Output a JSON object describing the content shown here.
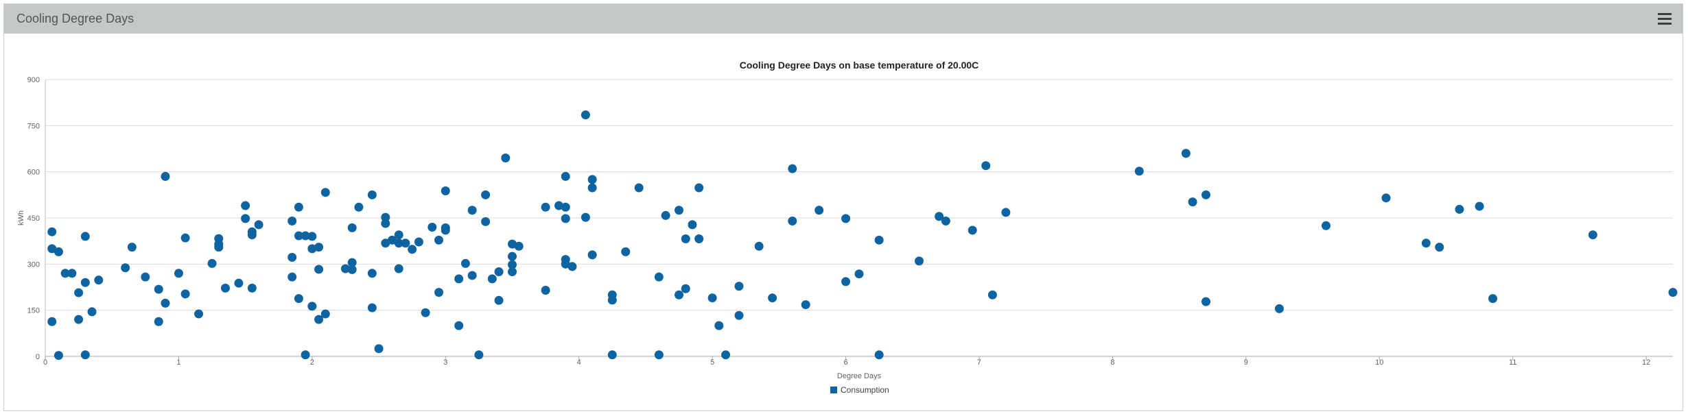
{
  "panel": {
    "title": "Cooling Degree Days",
    "menu_icon": "hamburger-menu-icon"
  },
  "colors": {
    "header_bg": "#c4c8c8",
    "point": "#0e64a0",
    "grid": "#d8d8d8"
  },
  "chart_data": {
    "type": "scatter",
    "title": "Cooling Degree Days on base temperature of 20.00C",
    "xlabel": "Degree Days",
    "ylabel": "kWh",
    "xlim": [
      0,
      12.2
    ],
    "ylim": [
      0,
      900
    ],
    "x_ticks": [
      0,
      1,
      2,
      3,
      4,
      5,
      6,
      7,
      8,
      9,
      10,
      11,
      12
    ],
    "y_ticks": [
      0,
      150,
      300,
      450,
      600,
      750,
      900
    ],
    "grid": true,
    "legend_position": "bottom-center",
    "series": [
      {
        "name": "Consumption",
        "color": "#0e64a0",
        "points": [
          [
            0.05,
            405
          ],
          [
            0.05,
            350
          ],
          [
            0.05,
            113
          ],
          [
            0.1,
            340
          ],
          [
            0.1,
            3
          ],
          [
            0.15,
            270
          ],
          [
            0.2,
            270
          ],
          [
            0.25,
            207
          ],
          [
            0.25,
            120
          ],
          [
            0.3,
            390
          ],
          [
            0.3,
            240
          ],
          [
            0.3,
            5
          ],
          [
            0.35,
            145
          ],
          [
            0.4,
            248
          ],
          [
            0.6,
            288
          ],
          [
            0.65,
            355
          ],
          [
            0.75,
            258
          ],
          [
            0.85,
            218
          ],
          [
            0.85,
            113
          ],
          [
            0.9,
            585
          ],
          [
            0.9,
            173
          ],
          [
            1.0,
            270
          ],
          [
            1.05,
            385
          ],
          [
            1.05,
            203
          ],
          [
            1.15,
            138
          ],
          [
            1.25,
            302
          ],
          [
            1.3,
            383
          ],
          [
            1.3,
            365
          ],
          [
            1.3,
            355
          ],
          [
            1.35,
            222
          ],
          [
            1.45,
            238
          ],
          [
            1.5,
            490
          ],
          [
            1.5,
            448
          ],
          [
            1.55,
            405
          ],
          [
            1.55,
            395
          ],
          [
            1.55,
            222
          ],
          [
            1.6,
            428
          ],
          [
            1.85,
            440
          ],
          [
            1.85,
            322
          ],
          [
            1.85,
            258
          ],
          [
            1.9,
            485
          ],
          [
            1.9,
            392
          ],
          [
            1.9,
            188
          ],
          [
            1.95,
            392
          ],
          [
            1.95,
            5
          ],
          [
            2.0,
            390
          ],
          [
            2.0,
            350
          ],
          [
            2.0,
            163
          ],
          [
            2.05,
            355
          ],
          [
            2.05,
            283
          ],
          [
            2.05,
            120
          ],
          [
            2.1,
            533
          ],
          [
            2.1,
            138
          ],
          [
            2.25,
            285
          ],
          [
            2.3,
            418
          ],
          [
            2.3,
            305
          ],
          [
            2.3,
            282
          ],
          [
            2.35,
            485
          ],
          [
            2.45,
            525
          ],
          [
            2.45,
            270
          ],
          [
            2.45,
            158
          ],
          [
            2.5,
            25
          ],
          [
            2.55,
            452
          ],
          [
            2.55,
            432
          ],
          [
            2.55,
            368
          ],
          [
            2.6,
            378
          ],
          [
            2.65,
            395
          ],
          [
            2.65,
            368
          ],
          [
            2.65,
            285
          ],
          [
            2.7,
            368
          ],
          [
            2.75,
            348
          ],
          [
            2.8,
            372
          ],
          [
            2.85,
            142
          ],
          [
            2.9,
            420
          ],
          [
            2.95,
            378
          ],
          [
            2.95,
            208
          ],
          [
            3.0,
            538
          ],
          [
            3.0,
            418
          ],
          [
            3.0,
            410
          ],
          [
            3.1,
            252
          ],
          [
            3.1,
            100
          ],
          [
            3.15,
            302
          ],
          [
            3.2,
            263
          ],
          [
            3.2,
            475
          ],
          [
            3.25,
            5
          ],
          [
            3.3,
            525
          ],
          [
            3.3,
            438
          ],
          [
            3.35,
            252
          ],
          [
            3.4,
            182
          ],
          [
            3.4,
            275
          ],
          [
            3.45,
            645
          ],
          [
            3.5,
            365
          ],
          [
            3.5,
            325
          ],
          [
            3.5,
            298
          ],
          [
            3.5,
            275
          ],
          [
            3.55,
            358
          ],
          [
            3.75,
            485
          ],
          [
            3.75,
            215
          ],
          [
            3.85,
            490
          ],
          [
            3.9,
            485
          ],
          [
            3.9,
            585
          ],
          [
            3.9,
            448
          ],
          [
            3.9,
            315
          ],
          [
            3.9,
            300
          ],
          [
            3.95,
            292
          ],
          [
            4.05,
            785
          ],
          [
            4.05,
            452
          ],
          [
            4.1,
            575
          ],
          [
            4.1,
            548
          ],
          [
            4.1,
            330
          ],
          [
            4.25,
            200
          ],
          [
            4.25,
            183
          ],
          [
            4.25,
            5
          ],
          [
            4.35,
            340
          ],
          [
            4.45,
            548
          ],
          [
            4.6,
            258
          ],
          [
            4.6,
            5
          ],
          [
            4.65,
            458
          ],
          [
            4.75,
            475
          ],
          [
            4.75,
            200
          ],
          [
            4.8,
            382
          ],
          [
            4.8,
            220
          ],
          [
            4.85,
            428
          ],
          [
            4.9,
            548
          ],
          [
            4.9,
            382
          ],
          [
            5.0,
            190
          ],
          [
            5.05,
            100
          ],
          [
            5.1,
            5
          ],
          [
            5.2,
            228
          ],
          [
            5.2,
            133
          ],
          [
            5.35,
            358
          ],
          [
            5.45,
            190
          ],
          [
            5.6,
            610
          ],
          [
            5.6,
            440
          ],
          [
            5.7,
            168
          ],
          [
            5.8,
            475
          ],
          [
            6.0,
            448
          ],
          [
            6.0,
            243
          ],
          [
            6.1,
            268
          ],
          [
            6.25,
            378
          ],
          [
            6.25,
            5
          ],
          [
            6.55,
            310
          ],
          [
            6.7,
            455
          ],
          [
            6.75,
            440
          ],
          [
            6.95,
            410
          ],
          [
            7.05,
            620
          ],
          [
            7.1,
            200
          ],
          [
            7.2,
            468
          ],
          [
            8.2,
            602
          ],
          [
            8.55,
            660
          ],
          [
            8.6,
            502
          ],
          [
            8.7,
            525
          ],
          [
            8.7,
            178
          ],
          [
            9.25,
            155
          ],
          [
            9.6,
            425
          ],
          [
            10.05,
            515
          ],
          [
            10.35,
            368
          ],
          [
            10.45,
            355
          ],
          [
            10.6,
            478
          ],
          [
            10.75,
            488
          ],
          [
            10.85,
            188
          ],
          [
            11.6,
            395
          ],
          [
            12.2,
            208
          ]
        ]
      }
    ]
  }
}
